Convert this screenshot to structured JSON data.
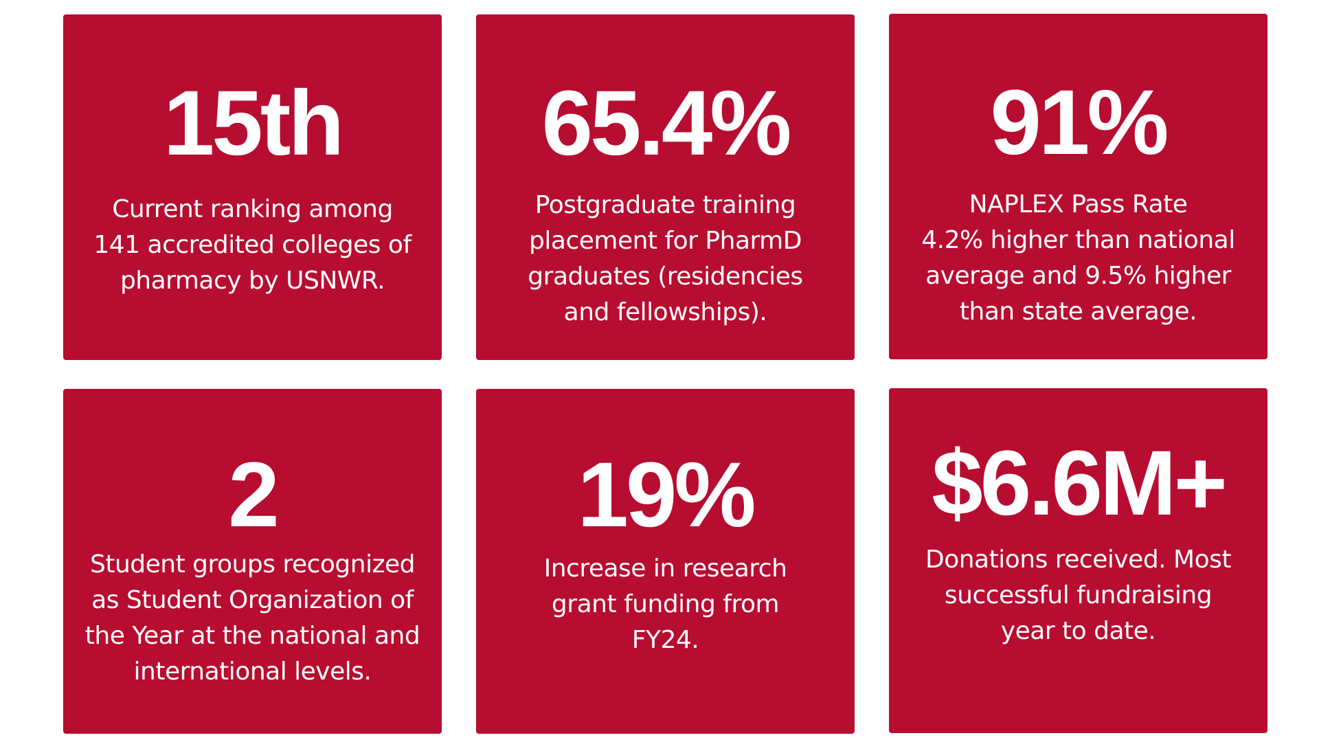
{
  "colors": {
    "card_background": "#b70d30",
    "text": "#ffffff",
    "page_background": "#ffffff"
  },
  "cards": [
    {
      "stat": "15th",
      "lines": [
        "Current ranking among",
        "141 accredited colleges of",
        "pharmacy by USNWR."
      ]
    },
    {
      "stat": "65.4%",
      "lines": [
        "Postgraduate training",
        "placement for PharmD",
        "graduates (residencies",
        "and fellowships)."
      ]
    },
    {
      "stat": "91%",
      "lines": [
        "NAPLEX Pass Rate",
        "4.2% higher than national",
        "average and 9.5% higher",
        "than state average."
      ]
    },
    {
      "stat": "2",
      "lines": [
        "Student groups recognized",
        "as Student Organization of",
        "the Year at the national and",
        "international levels."
      ]
    },
    {
      "stat": "19%",
      "lines": [
        "Increase in research",
        "grant funding from",
        "FY24."
      ]
    },
    {
      "stat": "$6.6M+",
      "lines": [
        "Donations received. Most",
        "successful fundraising",
        "year to date."
      ]
    }
  ]
}
